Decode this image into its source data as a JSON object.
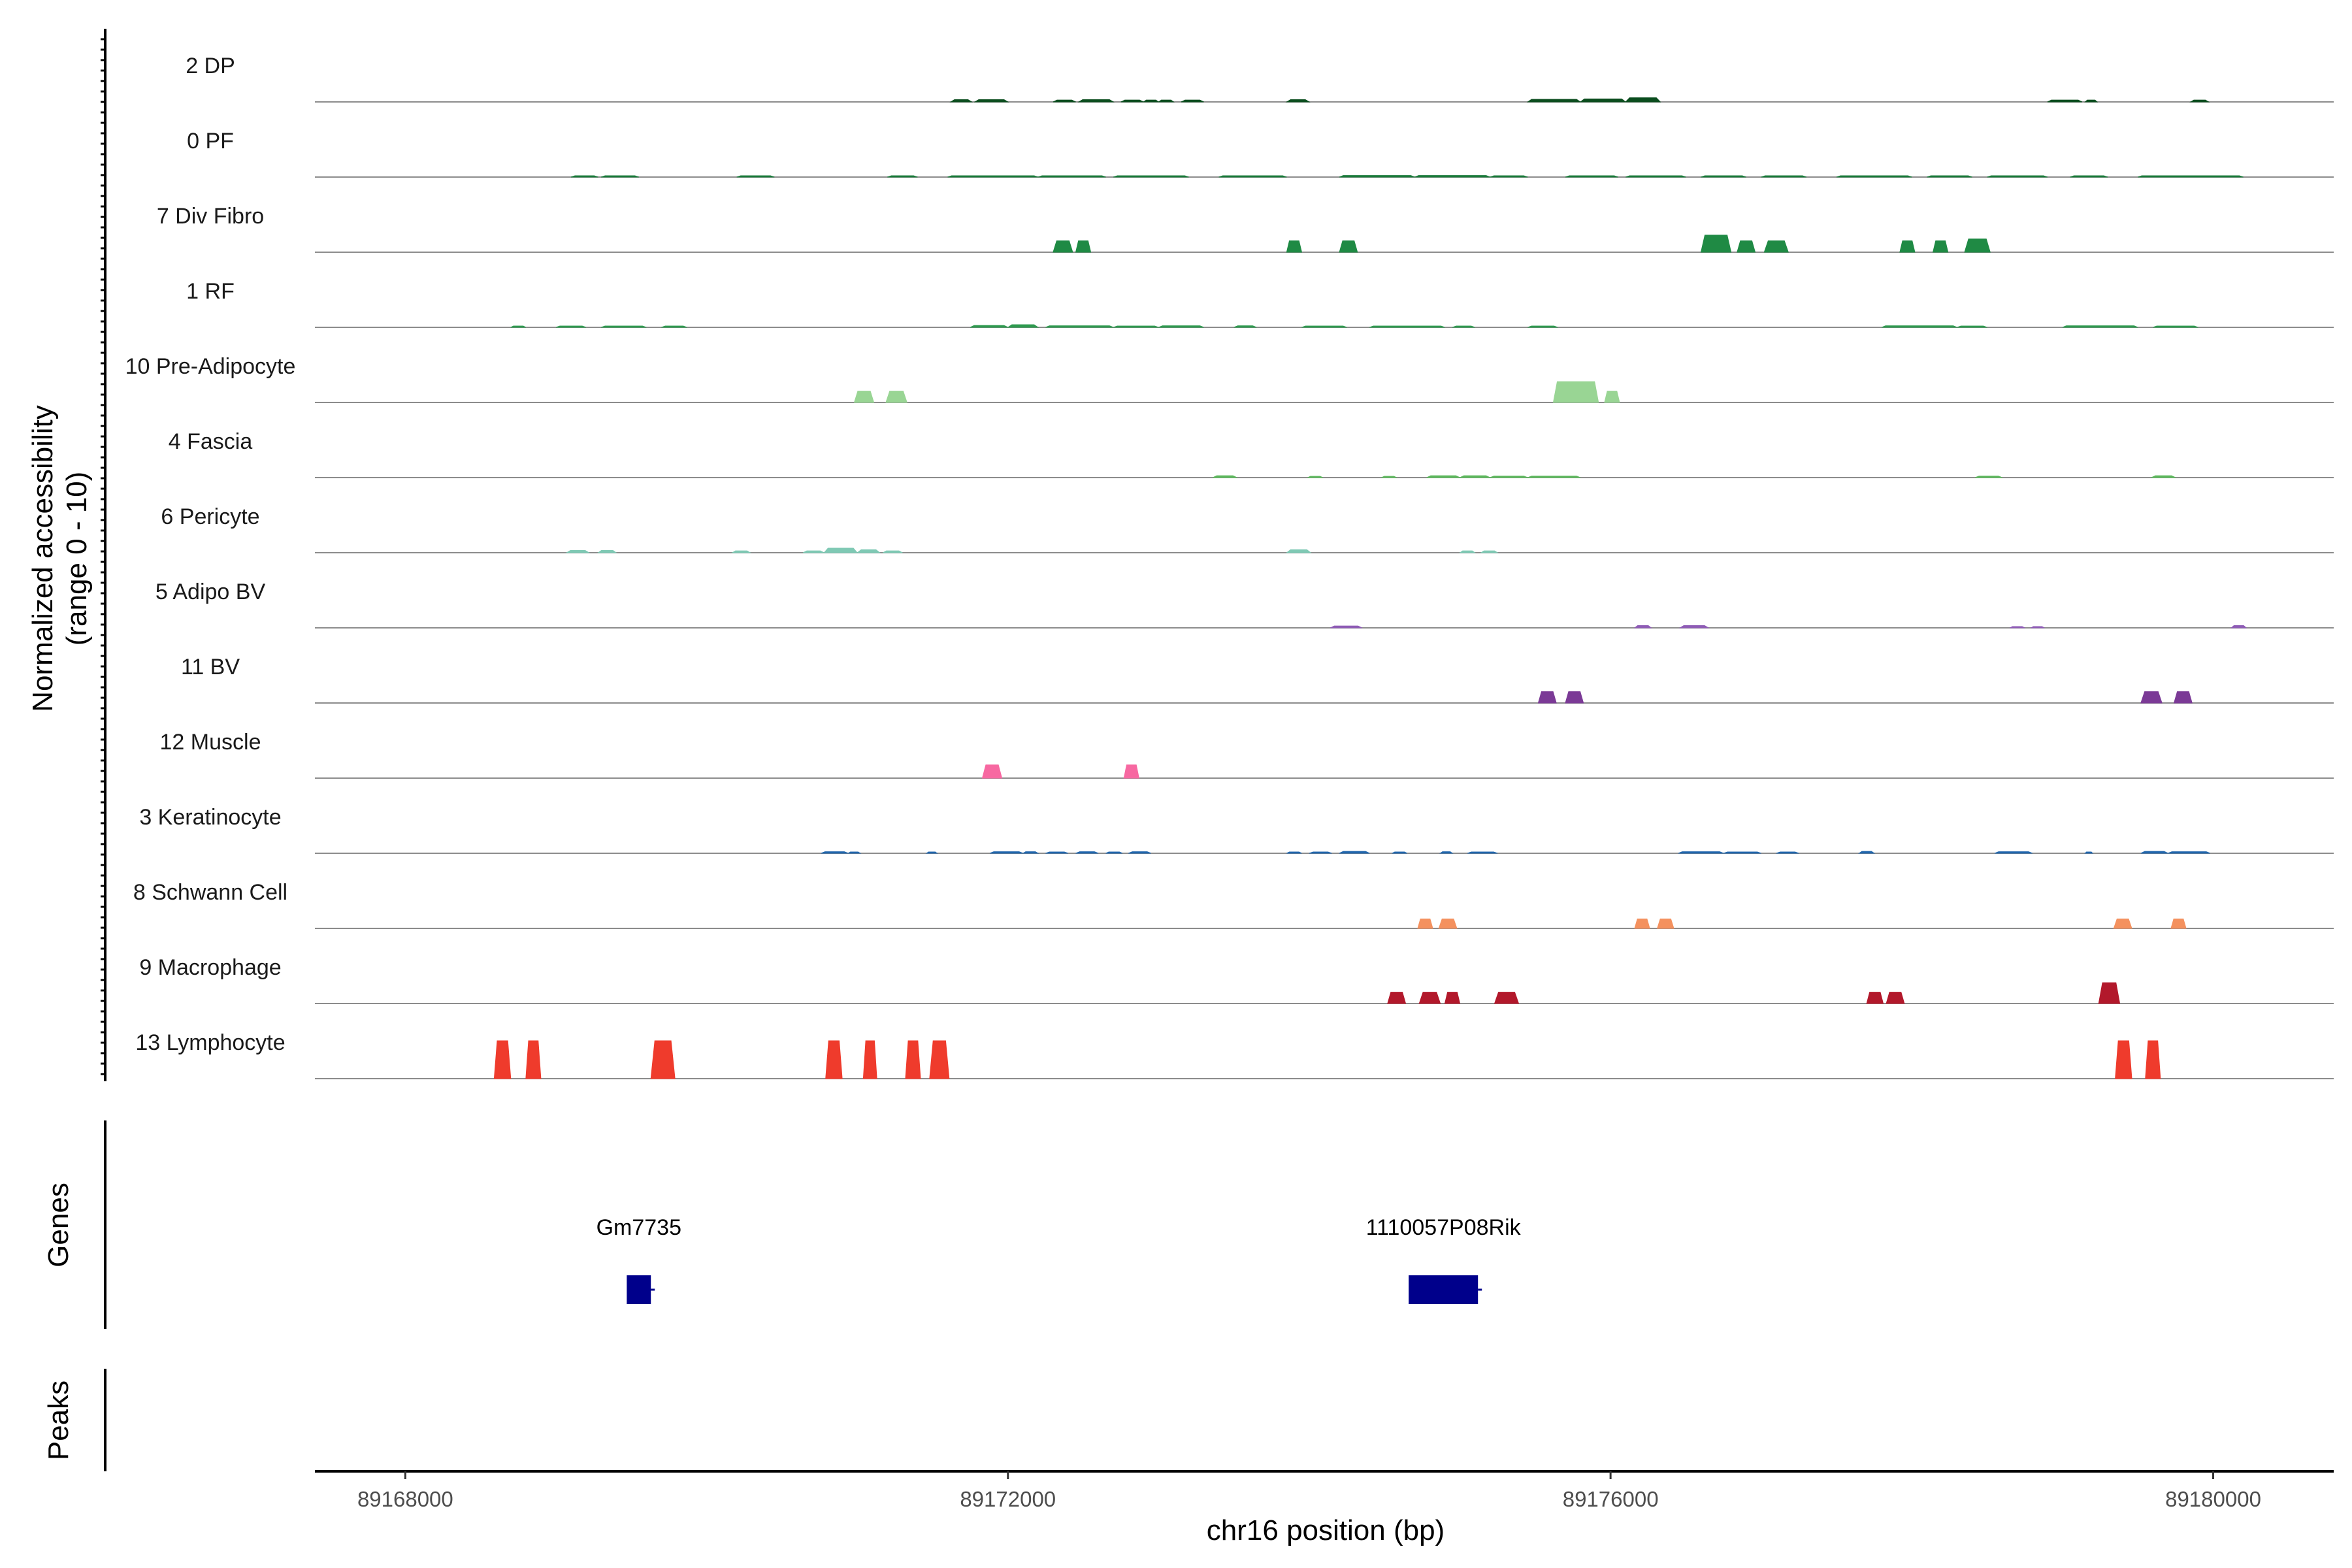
{
  "chart_data": {
    "type": "area",
    "y_axis_title": [
      "Normalized accessibility",
      "(range 0 - 10)"
    ],
    "ylim": [
      0,
      10
    ],
    "x_axis_title": "chr16 position (bp)",
    "xlim": [
      89167400,
      89180800
    ],
    "x_ticks": [
      89168000,
      89172000,
      89176000,
      89180000
    ],
    "x_tick_labels": [
      "89168000",
      "89172000",
      "89176000",
      "89180000"
    ],
    "series": [
      {
        "name": "2 DP",
        "color": "#0b4d1e",
        "peaks": [
          {
            "start": 89171620,
            "end": 89171760,
            "level": 0.06
          },
          {
            "start": 89171780,
            "end": 89172000,
            "level": 0.06
          },
          {
            "start": 89172300,
            "end": 89172450,
            "level": 0.05
          },
          {
            "start": 89172470,
            "end": 89172700,
            "level": 0.06
          },
          {
            "start": 89172750,
            "end": 89172900,
            "level": 0.05
          },
          {
            "start": 89172900,
            "end": 89173000,
            "level": 0.05
          },
          {
            "start": 89173000,
            "end": 89173100,
            "level": 0.05
          },
          {
            "start": 89173150,
            "end": 89173300,
            "level": 0.05
          },
          {
            "start": 89173850,
            "end": 89174000,
            "level": 0.06
          },
          {
            "start": 89175450,
            "end": 89175800,
            "level": 0.07
          },
          {
            "start": 89175800,
            "end": 89176100,
            "level": 0.08
          },
          {
            "start": 89176100,
            "end": 89176330,
            "level": 0.11
          },
          {
            "start": 89178900,
            "end": 89179130,
            "level": 0.05
          },
          {
            "start": 89179150,
            "end": 89179230,
            "level": 0.05
          },
          {
            "start": 89179850,
            "end": 89179970,
            "level": 0.05
          }
        ]
      },
      {
        "name": "0 PF",
        "color": "#1a7a3a",
        "peaks": [
          {
            "start": 89169100,
            "end": 89169280,
            "level": 0.03
          },
          {
            "start": 89169300,
            "end": 89169550,
            "level": 0.03
          },
          {
            "start": 89170200,
            "end": 89170450,
            "level": 0.03
          },
          {
            "start": 89171200,
            "end": 89171400,
            "level": 0.03
          },
          {
            "start": 89171600,
            "end": 89172200,
            "level": 0.03
          },
          {
            "start": 89172200,
            "end": 89172650,
            "level": 0.03
          },
          {
            "start": 89172700,
            "end": 89173200,
            "level": 0.03
          },
          {
            "start": 89173400,
            "end": 89173850,
            "level": 0.03
          },
          {
            "start": 89174200,
            "end": 89174700,
            "level": 0.04
          },
          {
            "start": 89174700,
            "end": 89175200,
            "level": 0.04
          },
          {
            "start": 89175200,
            "end": 89175450,
            "level": 0.03
          },
          {
            "start": 89175700,
            "end": 89176050,
            "level": 0.03
          },
          {
            "start": 89176100,
            "end": 89176500,
            "level": 0.03
          },
          {
            "start": 89176600,
            "end": 89176900,
            "level": 0.03
          },
          {
            "start": 89177000,
            "end": 89177300,
            "level": 0.03
          },
          {
            "start": 89177500,
            "end": 89178000,
            "level": 0.03
          },
          {
            "start": 89178100,
            "end": 89178400,
            "level": 0.03
          },
          {
            "start": 89178500,
            "end": 89178900,
            "level": 0.03
          },
          {
            "start": 89179050,
            "end": 89179300,
            "level": 0.03
          },
          {
            "start": 89179500,
            "end": 89180200,
            "level": 0.03
          }
        ]
      },
      {
        "name": "7 Div Fibro",
        "color": "#1f8a44",
        "peaks": [
          {
            "start": 89172300,
            "end": 89172430,
            "level": 0.3
          },
          {
            "start": 89172450,
            "end": 89172550,
            "level": 0.3
          },
          {
            "start": 89173850,
            "end": 89173950,
            "level": 0.3
          },
          {
            "start": 89174200,
            "end": 89174320,
            "level": 0.3
          },
          {
            "start": 89176600,
            "end": 89176800,
            "level": 0.45
          },
          {
            "start": 89176840,
            "end": 89176960,
            "level": 0.3
          },
          {
            "start": 89177020,
            "end": 89177180,
            "level": 0.3
          },
          {
            "start": 89177920,
            "end": 89178020,
            "level": 0.3
          },
          {
            "start": 89178140,
            "end": 89178240,
            "level": 0.3
          },
          {
            "start": 89178350,
            "end": 89178520,
            "level": 0.35
          }
        ]
      },
      {
        "name": "1 RF",
        "color": "#2e9a4f",
        "peaks": [
          {
            "start": 89168700,
            "end": 89168800,
            "level": 0.02
          },
          {
            "start": 89169000,
            "end": 89169200,
            "level": 0.03
          },
          {
            "start": 89169300,
            "end": 89169600,
            "level": 0.03
          },
          {
            "start": 89169700,
            "end": 89169870,
            "level": 0.03
          },
          {
            "start": 89171750,
            "end": 89172000,
            "level": 0.05
          },
          {
            "start": 89172000,
            "end": 89172200,
            "level": 0.07
          },
          {
            "start": 89172250,
            "end": 89172700,
            "level": 0.04
          },
          {
            "start": 89172700,
            "end": 89173000,
            "level": 0.03
          },
          {
            "start": 89173000,
            "end": 89173300,
            "level": 0.04
          },
          {
            "start": 89173500,
            "end": 89173650,
            "level": 0.04
          },
          {
            "start": 89173950,
            "end": 89174250,
            "level": 0.03
          },
          {
            "start": 89174400,
            "end": 89174900,
            "level": 0.03
          },
          {
            "start": 89174950,
            "end": 89175100,
            "level": 0.03
          },
          {
            "start": 89175450,
            "end": 89175650,
            "level": 0.03
          },
          {
            "start": 89177800,
            "end": 89178300,
            "level": 0.04
          },
          {
            "start": 89178300,
            "end": 89178500,
            "level": 0.03
          },
          {
            "start": 89179000,
            "end": 89179500,
            "level": 0.04
          },
          {
            "start": 89179600,
            "end": 89179900,
            "level": 0.03
          }
        ]
      },
      {
        "name": "10 Pre-Adipocyte",
        "color": "#99d594",
        "peaks": [
          {
            "start": 89170980,
            "end": 89171110,
            "level": 0.3
          },
          {
            "start": 89171190,
            "end": 89171330,
            "level": 0.3
          },
          {
            "start": 89175620,
            "end": 89175920,
            "level": 0.55
          },
          {
            "start": 89175960,
            "end": 89176060,
            "level": 0.3
          }
        ]
      },
      {
        "name": "4 Fascia",
        "color": "#5cb85c",
        "peaks": [
          {
            "start": 89173360,
            "end": 89173520,
            "level": 0.05
          },
          {
            "start": 89173990,
            "end": 89174090,
            "level": 0.03
          },
          {
            "start": 89174480,
            "end": 89174580,
            "level": 0.03
          },
          {
            "start": 89174780,
            "end": 89175000,
            "level": 0.05
          },
          {
            "start": 89175000,
            "end": 89175200,
            "level": 0.05
          },
          {
            "start": 89175200,
            "end": 89175450,
            "level": 0.04
          },
          {
            "start": 89175450,
            "end": 89175800,
            "level": 0.04
          },
          {
            "start": 89178420,
            "end": 89178600,
            "level": 0.04
          },
          {
            "start": 89179590,
            "end": 89179750,
            "level": 0.05
          }
        ]
      },
      {
        "name": "6 Pericyte",
        "color": "#7fc9b4",
        "peaks": [
          {
            "start": 89169070,
            "end": 89169220,
            "level": 0.06
          },
          {
            "start": 89169280,
            "end": 89169400,
            "level": 0.06
          },
          {
            "start": 89170170,
            "end": 89170290,
            "level": 0.05
          },
          {
            "start": 89170640,
            "end": 89170780,
            "level": 0.05
          },
          {
            "start": 89170780,
            "end": 89171000,
            "level": 0.12
          },
          {
            "start": 89171000,
            "end": 89171150,
            "level": 0.08
          },
          {
            "start": 89171170,
            "end": 89171300,
            "level": 0.05
          },
          {
            "start": 89173850,
            "end": 89174010,
            "level": 0.08
          },
          {
            "start": 89175000,
            "end": 89175100,
            "level": 0.05
          },
          {
            "start": 89175140,
            "end": 89175250,
            "level": 0.05
          }
        ]
      },
      {
        "name": "5 Adipo BV",
        "color": "#8e5bb5",
        "peaks": [
          {
            "start": 89174140,
            "end": 89174350,
            "level": 0.05
          },
          {
            "start": 89176160,
            "end": 89176270,
            "level": 0.06
          },
          {
            "start": 89176460,
            "end": 89176650,
            "level": 0.06
          },
          {
            "start": 89178650,
            "end": 89178750,
            "level": 0.03
          },
          {
            "start": 89178790,
            "end": 89178880,
            "level": 0.03
          },
          {
            "start": 89180120,
            "end": 89180220,
            "level": 0.06
          }
        ]
      },
      {
        "name": "11 BV",
        "color": "#7b3a96",
        "peaks": [
          {
            "start": 89175520,
            "end": 89175640,
            "level": 0.3
          },
          {
            "start": 89175700,
            "end": 89175820,
            "level": 0.3
          },
          {
            "start": 89179520,
            "end": 89179660,
            "level": 0.3
          },
          {
            "start": 89179740,
            "end": 89179860,
            "level": 0.3
          }
        ]
      },
      {
        "name": "12 Muscle",
        "color": "#f768a1",
        "peaks": [
          {
            "start": 89171830,
            "end": 89171960,
            "level": 0.35
          },
          {
            "start": 89172770,
            "end": 89172870,
            "level": 0.35
          }
        ]
      },
      {
        "name": "3 Keratinocyte",
        "color": "#2166ac",
        "peaks": [
          {
            "start": 89170760,
            "end": 89170940,
            "level": 0.04
          },
          {
            "start": 89170940,
            "end": 89171020,
            "level": 0.03
          },
          {
            "start": 89171460,
            "end": 89171530,
            "level": 0.03
          },
          {
            "start": 89171880,
            "end": 89172100,
            "level": 0.04
          },
          {
            "start": 89172100,
            "end": 89172200,
            "level": 0.04
          },
          {
            "start": 89172250,
            "end": 89172400,
            "level": 0.03
          },
          {
            "start": 89172450,
            "end": 89172600,
            "level": 0.04
          },
          {
            "start": 89172650,
            "end": 89172760,
            "level": 0.03
          },
          {
            "start": 89172800,
            "end": 89172950,
            "level": 0.04
          },
          {
            "start": 89173850,
            "end": 89173950,
            "level": 0.03
          },
          {
            "start": 89174000,
            "end": 89174150,
            "level": 0.03
          },
          {
            "start": 89174200,
            "end": 89174400,
            "level": 0.05
          },
          {
            "start": 89174550,
            "end": 89174650,
            "level": 0.03
          },
          {
            "start": 89174870,
            "end": 89174950,
            "level": 0.04
          },
          {
            "start": 89175050,
            "end": 89175250,
            "level": 0.03
          },
          {
            "start": 89176450,
            "end": 89176750,
            "level": 0.04
          },
          {
            "start": 89176750,
            "end": 89177000,
            "level": 0.03
          },
          {
            "start": 89177100,
            "end": 89177250,
            "level": 0.03
          },
          {
            "start": 89177650,
            "end": 89177750,
            "level": 0.05
          },
          {
            "start": 89178550,
            "end": 89178800,
            "level": 0.04
          },
          {
            "start": 89179150,
            "end": 89179200,
            "level": 0.03
          },
          {
            "start": 89179520,
            "end": 89179700,
            "level": 0.05
          },
          {
            "start": 89179700,
            "end": 89179980,
            "level": 0.04
          }
        ]
      },
      {
        "name": "8 Schwann Cell",
        "color": "#f4915e",
        "peaks": [
          {
            "start": 89174720,
            "end": 89174820,
            "level": 0.25
          },
          {
            "start": 89174860,
            "end": 89174980,
            "level": 0.25
          },
          {
            "start": 89176160,
            "end": 89176260,
            "level": 0.25
          },
          {
            "start": 89176310,
            "end": 89176420,
            "level": 0.25
          },
          {
            "start": 89179340,
            "end": 89179460,
            "level": 0.25
          },
          {
            "start": 89179720,
            "end": 89179820,
            "level": 0.25
          }
        ]
      },
      {
        "name": "9 Macrophage",
        "color": "#b2182b",
        "peaks": [
          {
            "start": 89174520,
            "end": 89174640,
            "level": 0.3
          },
          {
            "start": 89174730,
            "end": 89174870,
            "level": 0.3
          },
          {
            "start": 89174900,
            "end": 89175000,
            "level": 0.3
          },
          {
            "start": 89175230,
            "end": 89175390,
            "level": 0.3
          },
          {
            "start": 89177700,
            "end": 89177810,
            "level": 0.3
          },
          {
            "start": 89177830,
            "end": 89177950,
            "level": 0.3
          },
          {
            "start": 89179240,
            "end": 89179380,
            "level": 0.55
          }
        ]
      },
      {
        "name": "13 Lymphocyte",
        "color": "#ef3b2c",
        "peaks": [
          {
            "start": 89168590,
            "end": 89168700,
            "level": 1.0
          },
          {
            "start": 89168800,
            "end": 89168900,
            "level": 1.0
          },
          {
            "start": 89169630,
            "end": 89169790,
            "level": 1.0
          },
          {
            "start": 89170790,
            "end": 89170900,
            "level": 1.0
          },
          {
            "start": 89171040,
            "end": 89171130,
            "level": 1.0
          },
          {
            "start": 89171320,
            "end": 89171420,
            "level": 1.0
          },
          {
            "start": 89171480,
            "end": 89171610,
            "level": 1.0
          },
          {
            "start": 89179350,
            "end": 89179460,
            "level": 1.0
          },
          {
            "start": 89179550,
            "end": 89179650,
            "level": 1.0
          }
        ]
      }
    ],
    "genes": [
      {
        "name": "Gm7735",
        "start": 89169470,
        "end": 89169630,
        "color": "#00008b"
      },
      {
        "name": "1110057P08Rik",
        "start": 89174660,
        "end": 89175120,
        "color": "#00008b"
      }
    ],
    "genes_track_label": "Genes",
    "peaks_track_label": "Peaks",
    "peaks_track_items": []
  }
}
